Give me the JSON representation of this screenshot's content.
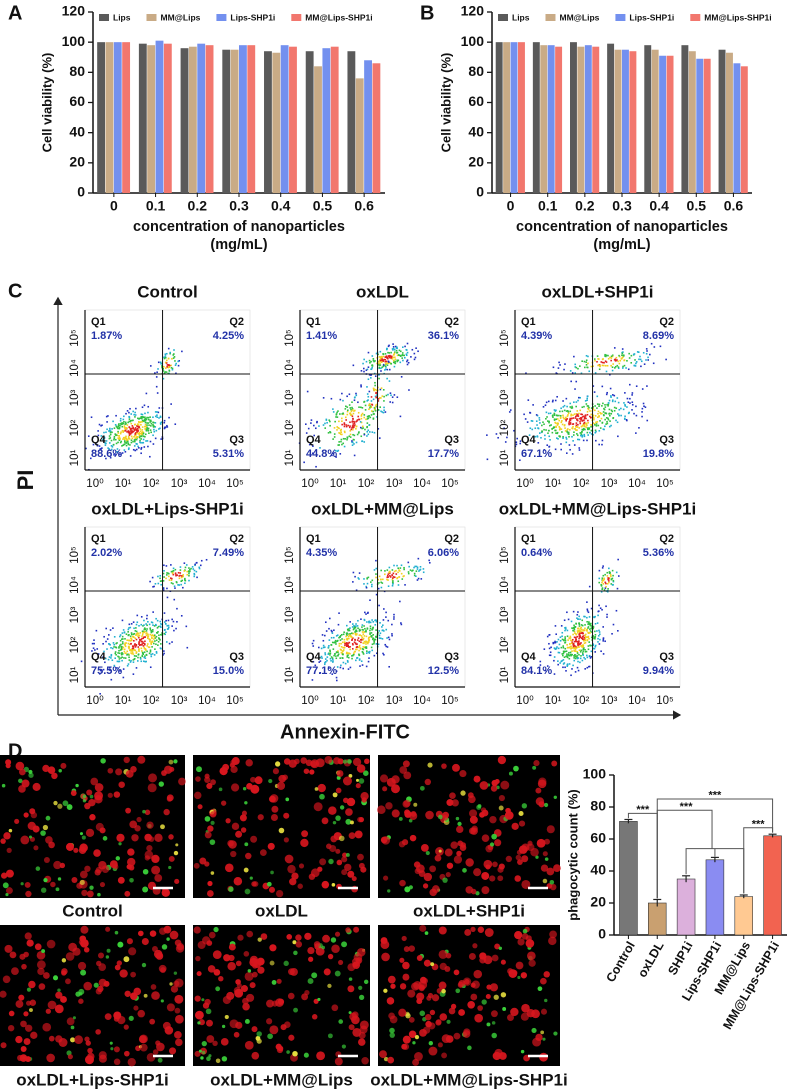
{
  "panel_labels": [
    "A",
    "B",
    "C",
    "D"
  ],
  "chart_data": [
    {
      "type": "bar",
      "y_label": "Cell viability (%)",
      "x_label": [
        "concentration of nanoparticles",
        "(mg/mL)"
      ],
      "categories": [
        "0",
        "0.1",
        "0.2",
        "0.3",
        "0.4",
        "0.5",
        "0.6"
      ],
      "ylim": [
        0,
        120
      ],
      "yticks": [
        0,
        20,
        40,
        60,
        80,
        100,
        120
      ],
      "series": [
        {
          "name": "Lips",
          "color": "#5a5a5a",
          "values": [
            100,
            99,
            96,
            95,
            94,
            94,
            94
          ]
        },
        {
          "name": "MM@Lips",
          "color": "#c9ab86",
          "values": [
            100,
            98,
            97,
            95,
            93,
            84,
            76
          ]
        },
        {
          "name": "Lips-SHP1i",
          "color": "#7390ef",
          "values": [
            100,
            101,
            99,
            98,
            98,
            96,
            88
          ]
        },
        {
          "name": "MM@Lips-SHP1i",
          "color": "#f2776e",
          "values": [
            100,
            99,
            98,
            98,
            97,
            97,
            86
          ]
        }
      ]
    },
    {
      "type": "bar",
      "y_label": "Cell viability (%)",
      "x_label": [
        "concentration of nanoparticles",
        "(mg/mL)"
      ],
      "categories": [
        "0",
        "0.1",
        "0.2",
        "0.3",
        "0.4",
        "0.5",
        "0.6"
      ],
      "ylim": [
        0,
        120
      ],
      "yticks": [
        0,
        20,
        40,
        60,
        80,
        100,
        120
      ],
      "series": [
        {
          "name": "Lips",
          "color": "#5a5a5a",
          "values": [
            100,
            100,
            100,
            99,
            98,
            98,
            95
          ]
        },
        {
          "name": "MM@Lips",
          "color": "#c9ab86",
          "values": [
            100,
            98,
            97,
            95,
            95,
            94,
            93
          ]
        },
        {
          "name": "Lips-SHP1i",
          "color": "#7390ef",
          "values": [
            100,
            98,
            98,
            95,
            91,
            89,
            86
          ]
        },
        {
          "name": "MM@Lips-SHP1i",
          "color": "#f2776e",
          "values": [
            100,
            97,
            97,
            94,
            91,
            89,
            84
          ]
        }
      ]
    },
    {
      "type": "bar",
      "y_label": "phagocytic count (%)",
      "categories": [
        "Control",
        "oxLDL",
        "SHP1i",
        "Lips-SHP1i",
        "MM@Lips",
        "MM@Lips-SHP1i"
      ],
      "values": [
        71,
        20,
        35,
        47,
        24,
        62
      ],
      "errors": [
        1.2,
        2.2,
        2,
        1.5,
        1,
        1
      ],
      "colors": [
        "#777777",
        "#c9a070",
        "#dcb0dc",
        "#8a8cf2",
        "#ffc992",
        "#f26350"
      ],
      "ylim": [
        0,
        100
      ],
      "yticks": [
        0,
        20,
        40,
        60,
        80,
        100
      ],
      "annotations": [
        "***",
        "***",
        "***",
        "***"
      ]
    }
  ],
  "flow": {
    "y_label": "PI",
    "x_label": "Annexin-FITC",
    "xticks": [
      "10⁰",
      "10¹",
      "10²",
      "10³",
      "10⁴",
      "10⁵"
    ],
    "yticks": [
      "10¹",
      "10²",
      "10³",
      "10⁴",
      "10⁵"
    ],
    "panels": [
      {
        "title": "Control",
        "quadrants": [
          {
            "name": "Q1",
            "value": "1.87%"
          },
          {
            "name": "Q2",
            "value": "4.25%"
          },
          {
            "name": "Q3",
            "value": "5.31%"
          },
          {
            "name": "Q4",
            "value": "88.6%"
          }
        ]
      },
      {
        "title": "oxLDL",
        "quadrants": [
          {
            "name": "Q1",
            "value": "1.41%"
          },
          {
            "name": "Q2",
            "value": "36.1%"
          },
          {
            "name": "Q3",
            "value": "17.7%"
          },
          {
            "name": "Q4",
            "value": "44.8%"
          }
        ]
      },
      {
        "title": "oxLDL+SHP1i",
        "quadrants": [
          {
            "name": "Q1",
            "value": "4.39%"
          },
          {
            "name": "Q2",
            "value": "8.69%"
          },
          {
            "name": "Q3",
            "value": "19.8%"
          },
          {
            "name": "Q4",
            "value": "67.1%"
          }
        ]
      },
      {
        "title": "oxLDL+Lips-SHP1i",
        "quadrants": [
          {
            "name": "Q1",
            "value": "2.02%"
          },
          {
            "name": "Q2",
            "value": "7.49%"
          },
          {
            "name": "Q3",
            "value": "15.0%"
          },
          {
            "name": "Q4",
            "value": "75.5%"
          }
        ]
      },
      {
        "title": "oxLDL+MM@Lips",
        "quadrants": [
          {
            "name": "Q1",
            "value": "4.35%"
          },
          {
            "name": "Q2",
            "value": "6.06%"
          },
          {
            "name": "Q3",
            "value": "12.5%"
          },
          {
            "name": "Q4",
            "value": "77.1%"
          }
        ]
      },
      {
        "title": "oxLDL+MM@Lips-SHP1i",
        "quadrants": [
          {
            "name": "Q1",
            "value": "0.64%"
          },
          {
            "name": "Q2",
            "value": "5.36%"
          },
          {
            "name": "Q3",
            "value": "9.94%"
          },
          {
            "name": "Q4",
            "value": "84.1%"
          }
        ]
      }
    ]
  },
  "micrographs": [
    "Control",
    "oxLDL",
    "oxLDL+SHP1i",
    "oxLDL+Lips-SHP1i",
    "oxLDL+MM@Lips",
    "oxLDL+MM@Lips-SHP1i"
  ]
}
